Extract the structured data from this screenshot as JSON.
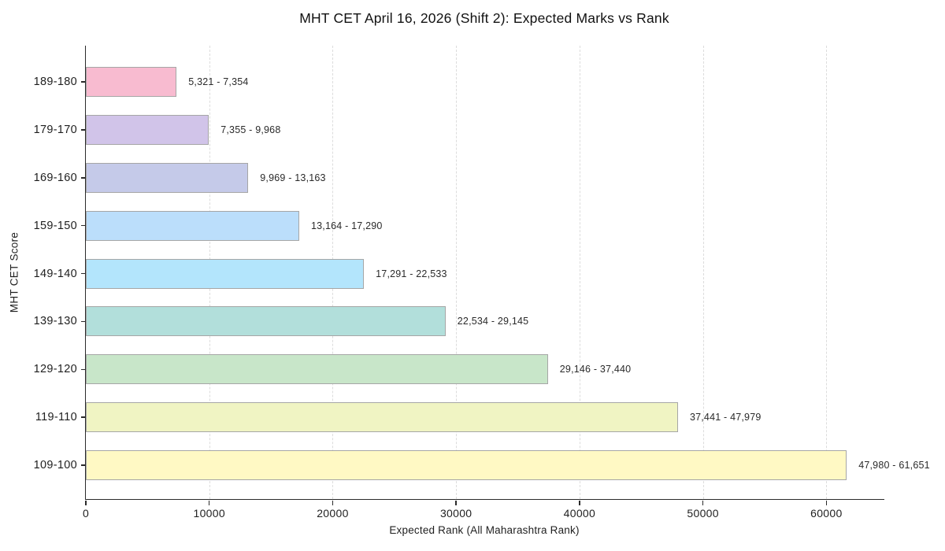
{
  "title": "MHT CET April 16, 2026 (Shift 2): Expected Marks vs Rank",
  "chart_data": {
    "type": "bar",
    "orientation": "horizontal",
    "title": "MHT CET April 16, 2026 (Shift 2): Expected Marks vs Rank",
    "xlabel": "Expected Rank (All Maharashtra Rank)",
    "ylabel": "MHT CET Score",
    "categories": [
      "189-180",
      "179-170",
      "169-160",
      "159-150",
      "149-140",
      "139-130",
      "129-120",
      "119-110",
      "109-100"
    ],
    "values": [
      7354,
      9968,
      13163,
      17290,
      22533,
      29145,
      37440,
      47979,
      61651
    ],
    "rank_range_labels": [
      "5,321 - 7,354",
      "7,355 - 9,968",
      "9,969 - 13,163",
      "13,164 - 17,290",
      "17,291 - 22,533",
      "22,534 - 29,145",
      "29,146 - 37,440",
      "37,441 - 47,979",
      "47,980 - 61,651"
    ],
    "bar_colors": [
      "#F8BBD0",
      "#D1C4E9",
      "#C5CAE9",
      "#BBDEFB",
      "#B3E5FC",
      "#B2DFDB",
      "#C8E6C9",
      "#F0F4C3",
      "#FFF9C4"
    ],
    "bar_border_color": "#a6a6a6",
    "xticks": [
      0,
      10000,
      20000,
      30000,
      40000,
      50000,
      60000
    ],
    "xtick_labels": [
      "0",
      "10000",
      "20000",
      "30000",
      "40000",
      "50000",
      "60000"
    ],
    "xlim": [
      0,
      64700
    ],
    "grid": "vertical-dashed",
    "gridline_color": "#dcdcdc",
    "axis_color": "#2b2b2b",
    "background": "#ffffff",
    "legend": "none"
  }
}
